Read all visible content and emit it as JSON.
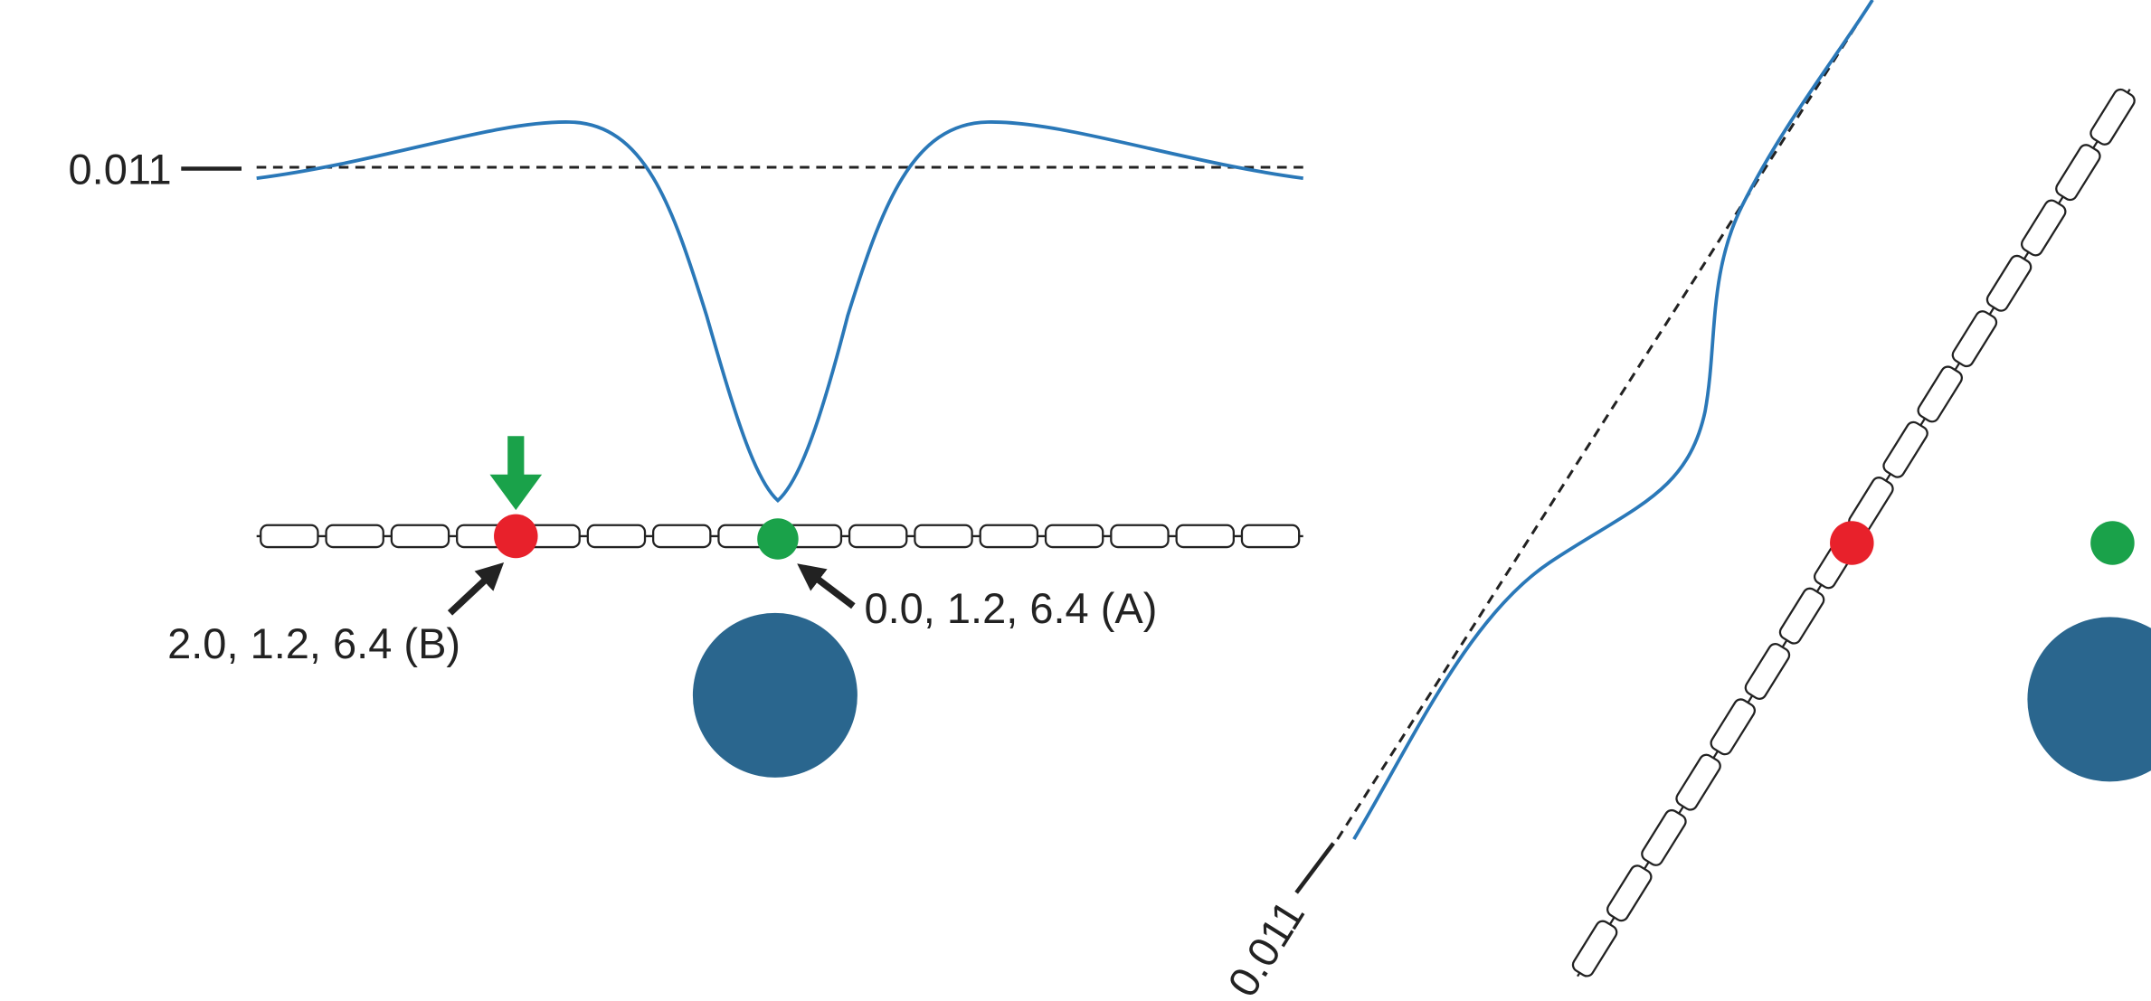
{
  "left_panel": {
    "reference_label": "0.011",
    "point_b_label": "2.0, 1.2, 6.4 (B)",
    "point_a_label": "0.0, 1.2, 6.4 (A)"
  },
  "right_panel": {
    "reference_label": "0.011"
  }
}
